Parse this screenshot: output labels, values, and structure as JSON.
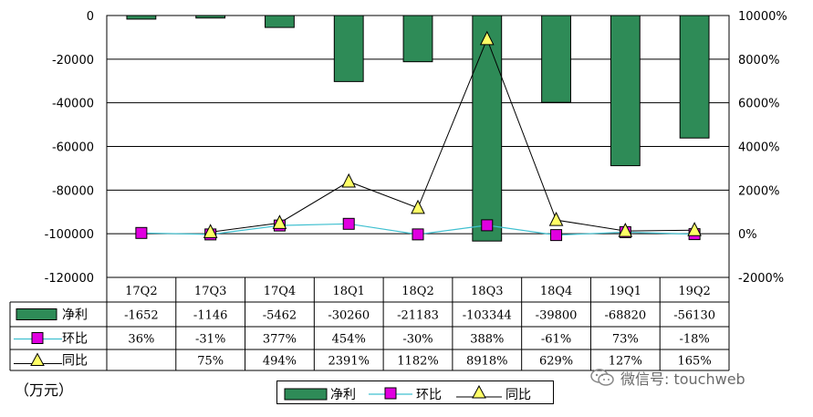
{
  "chart_data": {
    "type": "bar",
    "categories": [
      "17Q2",
      "17Q3",
      "17Q4",
      "18Q1",
      "18Q2",
      "18Q3",
      "18Q4",
      "19Q1",
      "19Q2"
    ],
    "series": [
      {
        "name": "净利",
        "type": "bar",
        "axis": "left",
        "color": "#2e8b57",
        "values": [
          -1652,
          -1146,
          -5462,
          -30260,
          -21183,
          -103344,
          -39800,
          -68820,
          -56130
        ],
        "labels": [
          "-1652",
          "-1146",
          "-5462",
          "-30260",
          "-21183",
          "-103344",
          "-39800",
          "-68820",
          "-56130"
        ]
      },
      {
        "name": "环比",
        "type": "line",
        "axis": "right",
        "color": "#40c0d0",
        "marker_color": "#e000e0",
        "values": [
          36,
          -31,
          377,
          454,
          -30,
          388,
          -61,
          73,
          -18
        ],
        "labels": [
          "36%",
          "-31%",
          "377%",
          "454%",
          "-30%",
          "388%",
          "-61%",
          "73%",
          "-18%"
        ]
      },
      {
        "name": "同比",
        "type": "line",
        "axis": "right",
        "color": "#000000",
        "marker_color": "#ffff66",
        "values": [
          null,
          75,
          494,
          2391,
          1182,
          8918,
          629,
          127,
          165
        ],
        "labels": [
          "",
          "75%",
          "494%",
          "2391%",
          "1182%",
          "8918%",
          "629%",
          "127%",
          "165%"
        ]
      }
    ],
    "y_left": {
      "min": -120000,
      "max": 0,
      "step": 20000,
      "ticks": [
        "0",
        "-20000",
        "-40000",
        "-60000",
        "-80000",
        "-100000",
        "-120000"
      ]
    },
    "y_right": {
      "min": -2000,
      "max": 10000,
      "step": 2000,
      "ticks": [
        "10000%",
        "8000%",
        "6000%",
        "4000%",
        "2000%",
        "0%",
        "-2000%"
      ]
    },
    "unit_label": "（万元）",
    "grid": true,
    "legend_position": "bottom-center"
  },
  "watermark": {
    "text": "微信号: touchweb",
    "icon": "wechat-icon"
  }
}
